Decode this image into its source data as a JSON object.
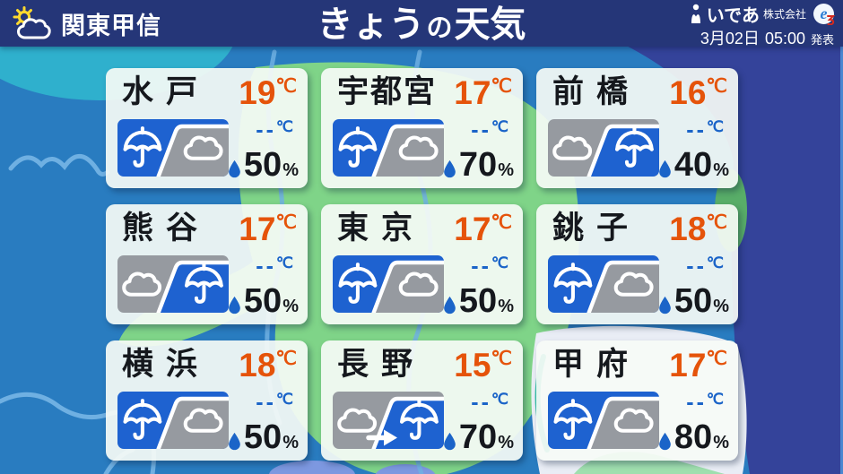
{
  "header": {
    "region": "関東甲信",
    "title_main": "きょう",
    "title_particle": "の",
    "title_sub": "天気",
    "company": "いであ",
    "company_suffix": "株式会社",
    "logo_letter": "e",
    "issued_date": "3月02日",
    "issued_time": "05:00",
    "issued_label": "発表"
  },
  "units": {
    "temp": "℃",
    "percent": "%"
  },
  "cards": [
    {
      "city": "水戸",
      "high": "19",
      "low": "--",
      "pop": "50",
      "icon": "rain-then-cloudy"
    },
    {
      "city": "宇都宮",
      "high": "17",
      "low": "--",
      "pop": "70",
      "icon": "rain-then-cloudy"
    },
    {
      "city": "前橋",
      "high": "16",
      "low": "--",
      "pop": "40",
      "icon": "cloudy-then-rain"
    },
    {
      "city": "熊谷",
      "high": "17",
      "low": "--",
      "pop": "50",
      "icon": "cloudy-then-rain"
    },
    {
      "city": "東京",
      "high": "17",
      "low": "--",
      "pop": "50",
      "icon": "rain-then-cloudy"
    },
    {
      "city": "銚子",
      "high": "18",
      "low": "--",
      "pop": "50",
      "icon": "rain-then-cloudy"
    },
    {
      "city": "横浜",
      "high": "18",
      "low": "--",
      "pop": "50",
      "icon": "rain-then-cloudy"
    },
    {
      "city": "長野",
      "high": "15",
      "low": "--",
      "pop": "70",
      "icon": "cloudy-then-rain-arrow"
    },
    {
      "city": "甲府",
      "high": "17",
      "low": "--",
      "pop": "80",
      "icon": "rain-then-cloudy"
    }
  ],
  "colors": {
    "header_navy": "#253678",
    "sea_blue": "#297cc0",
    "sea_indigo": "#34439a",
    "land_green": "#7fd488",
    "teal": "#2fb0cd",
    "card_bg": "#f6fbf6",
    "icon_blue": "#1e62d0",
    "icon_gray": "#969aa0",
    "temp_high_orange": "#e5530a",
    "temp_low_blue": "#1b64c8",
    "text_black": "#15181d",
    "map_line": "#6fb0e2"
  }
}
